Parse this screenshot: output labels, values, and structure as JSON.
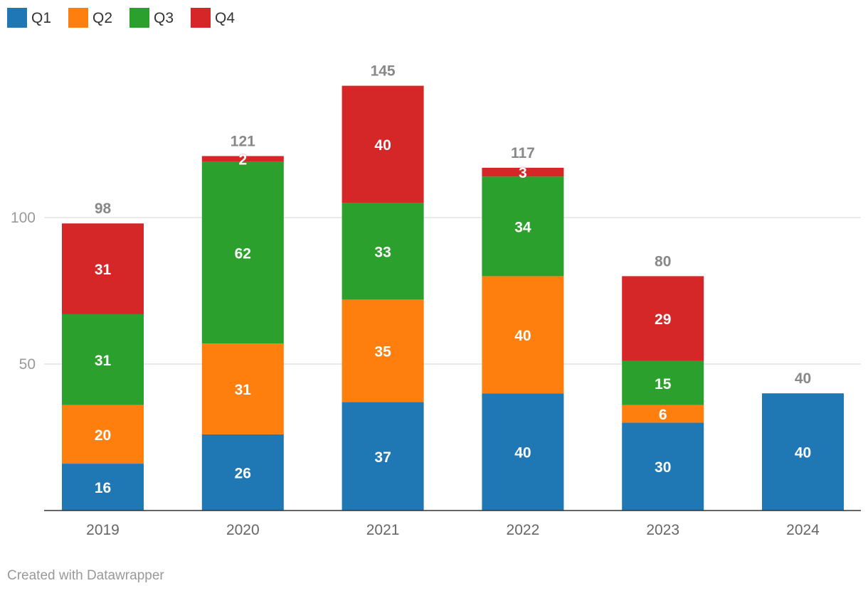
{
  "chart_data": {
    "type": "bar",
    "stacked": true,
    "categories": [
      "2019",
      "2020",
      "2021",
      "2022",
      "2023",
      "2024"
    ],
    "series": [
      {
        "name": "Q1",
        "color": "#1f77b4",
        "values": [
          16,
          26,
          37,
          40,
          30,
          40
        ]
      },
      {
        "name": "Q2",
        "color": "#ff7f0e",
        "values": [
          20,
          31,
          35,
          40,
          6,
          null
        ]
      },
      {
        "name": "Q3",
        "color": "#2ca02c",
        "values": [
          31,
          62,
          33,
          34,
          15,
          null
        ]
      },
      {
        "name": "Q4",
        "color": "#d62728",
        "values": [
          31,
          2,
          40,
          3,
          29,
          null
        ]
      }
    ],
    "totals": [
      98,
      121,
      145,
      117,
      80,
      40
    ],
    "yticks": [
      50,
      100
    ],
    "ylim": [
      0,
      145
    ],
    "grid": true,
    "legend_position": "top-left",
    "title": "",
    "xlabel": "",
    "ylabel": ""
  },
  "credit": "Created with Datawrapper"
}
